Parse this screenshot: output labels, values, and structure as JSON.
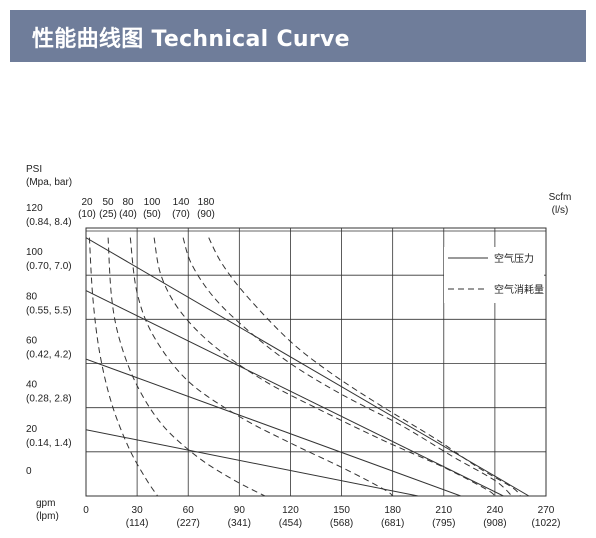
{
  "header": {
    "title": "性能曲线图 Technical Curve"
  },
  "chart_data": {
    "type": "line",
    "title": "性能曲线图 Technical Curve",
    "y_axis": {
      "unit_line1": "PSI",
      "unit_line2": "(Mpa, bar)",
      "range": [
        0,
        120
      ],
      "ticks": [
        {
          "value": 120,
          "label": "120",
          "sublabel": "(0.84, 8.4)"
        },
        {
          "value": 100,
          "label": "100",
          "sublabel": "(0.70, 7.0)"
        },
        {
          "value": 80,
          "label": "80",
          "sublabel": "(0.55, 5.5)"
        },
        {
          "value": 60,
          "label": "60",
          "sublabel": "(0.42, 4.2)"
        },
        {
          "value": 40,
          "label": "40",
          "sublabel": "(0.28, 2.8)"
        },
        {
          "value": 20,
          "label": "20",
          "sublabel": "(0.14, 1.4)"
        },
        {
          "value": 0,
          "label": "0",
          "sublabel": ""
        }
      ]
    },
    "x_axis": {
      "unit_line1": "gpm",
      "unit_line2": "(lpm)",
      "range": [
        0,
        270
      ],
      "ticks": [
        {
          "value": 0,
          "label": "0",
          "sublabel": ""
        },
        {
          "value": 30,
          "label": "30",
          "sublabel": "(114)"
        },
        {
          "value": 60,
          "label": "60",
          "sublabel": "(227)"
        },
        {
          "value": 90,
          "label": "90",
          "sublabel": "(341)"
        },
        {
          "value": 120,
          "label": "120",
          "sublabel": "(454)"
        },
        {
          "value": 150,
          "label": "150",
          "sublabel": "(568)"
        },
        {
          "value": 180,
          "label": "180",
          "sublabel": "(681)"
        },
        {
          "value": 210,
          "label": "210",
          "sublabel": "(795)"
        },
        {
          "value": 240,
          "label": "240",
          "sublabel": "(908)"
        },
        {
          "value": 270,
          "label": "270",
          "sublabel": "(1022)"
        }
      ]
    },
    "top_axis": {
      "unit_line1": "Scfm",
      "unit_line2": "(l/s)",
      "ticks": [
        {
          "label": "20",
          "sublabel": "(10)",
          "at_gpm": 0
        },
        {
          "label": "50",
          "sublabel": "(25)",
          "at_gpm": 12
        },
        {
          "label": "80",
          "sublabel": "(40)",
          "at_gpm": 25
        },
        {
          "label": "100",
          "sublabel": "(50)",
          "at_gpm": 38
        },
        {
          "label": "140",
          "sublabel": "(70)",
          "at_gpm": 55
        },
        {
          "label": "180",
          "sublabel": "(90)",
          "at_gpm": 70
        }
      ]
    },
    "grid": true,
    "legend": {
      "placement": "right",
      "entries": [
        {
          "label": "空气压力",
          "style": "solid"
        },
        {
          "label": "空气消耗量",
          "style": "dashed"
        }
      ]
    },
    "pressure_curves": [
      {
        "points": [
          [
            0,
            117
          ],
          [
            260,
            0
          ]
        ]
      },
      {
        "points": [
          [
            0,
            93
          ],
          [
            245,
            0
          ]
        ]
      },
      {
        "points": [
          [
            0,
            62
          ],
          [
            220,
            0
          ]
        ]
      },
      {
        "points": [
          [
            0,
            30
          ],
          [
            195,
            0
          ]
        ]
      }
    ],
    "air_consumption_curves": [
      {
        "points": [
          [
            2,
            117
          ],
          [
            4,
            90
          ],
          [
            8,
            65
          ],
          [
            15,
            42
          ],
          [
            25,
            22
          ],
          [
            35,
            8
          ],
          [
            42,
            0
          ]
        ]
      },
      {
        "points": [
          [
            13,
            117
          ],
          [
            15,
            90
          ],
          [
            20,
            70
          ],
          [
            30,
            50
          ],
          [
            45,
            32
          ],
          [
            65,
            18
          ],
          [
            85,
            8
          ],
          [
            105,
            0
          ]
        ]
      },
      {
        "points": [
          [
            26,
            117
          ],
          [
            30,
            92
          ],
          [
            40,
            72
          ],
          [
            60,
            52
          ],
          [
            90,
            36
          ],
          [
            120,
            24
          ],
          [
            150,
            13
          ],
          [
            175,
            3
          ],
          [
            180,
            0
          ]
        ]
      },
      {
        "points": [
          [
            40,
            117
          ],
          [
            44,
            100
          ],
          [
            55,
            84
          ],
          [
            75,
            68
          ],
          [
            105,
            52
          ],
          [
            140,
            38
          ],
          [
            175,
            25
          ],
          [
            210,
            13
          ],
          [
            235,
            3
          ],
          [
            240,
            0
          ]
        ]
      },
      {
        "points": [
          [
            57,
            117
          ],
          [
            62,
            105
          ],
          [
            75,
            90
          ],
          [
            95,
            75
          ],
          [
            120,
            60
          ],
          [
            150,
            46
          ],
          [
            185,
            32
          ],
          [
            215,
            18
          ],
          [
            240,
            7
          ],
          [
            250,
            0
          ]
        ]
      },
      {
        "points": [
          [
            72,
            117
          ],
          [
            80,
            105
          ],
          [
            95,
            90
          ],
          [
            120,
            70
          ],
          [
            145,
            55
          ],
          [
            175,
            40
          ],
          [
            205,
            26
          ],
          [
            230,
            13
          ],
          [
            250,
            4
          ],
          [
            255,
            0
          ]
        ]
      }
    ]
  }
}
